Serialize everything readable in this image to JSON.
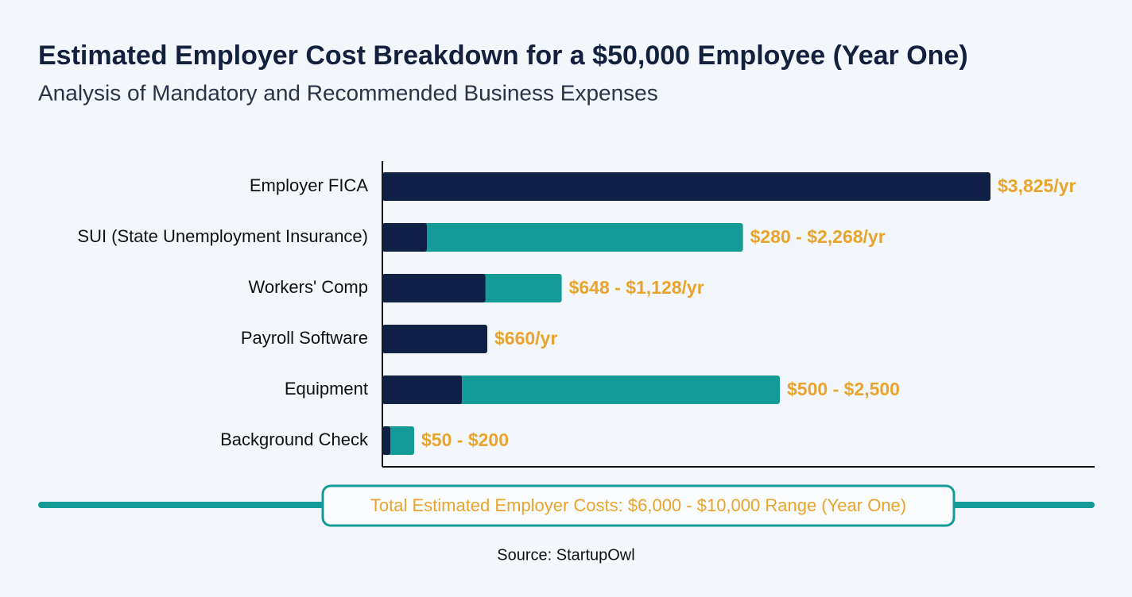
{
  "chart_data": {
    "type": "range-bar",
    "title": "Estimated Employer Cost Breakdown for a $50,000 Employee (Year One)",
    "subtitle": "Analysis of Mandatory and Recommended Business Expenses",
    "categories": [
      "Employer FICA",
      "SUI (State Unemployment Insurance)",
      "Workers' Comp",
      "Payroll Software",
      "Equipment",
      "Background Check"
    ],
    "series": [
      {
        "color": "#0f1f45",
        "values": [
          3825,
          280,
          648,
          660,
          500,
          50
        ]
      },
      {
        "color": "#149b97",
        "values": [
          null,
          2268,
          1128,
          null,
          2500,
          200
        ]
      }
    ],
    "value_labels": [
      "$3,825/yr",
      "$280 - $2,268/yr",
      "$648 - $1,128/yr",
      "$660/yr",
      "$500 - $2,500",
      "$50 - $200"
    ],
    "label_color": "#e8a42c",
    "xlim": [
      0,
      4480
    ],
    "total_note": "Total Estimated Employer Costs: $6,000 - $10,000 Range (Year One)",
    "source": "Source: StartupOwl"
  }
}
